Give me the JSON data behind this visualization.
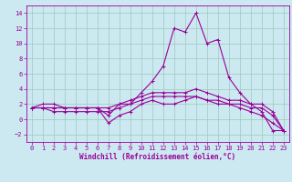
{
  "xlabel": "Windchill (Refroidissement éolien,°C)",
  "bg_color": "#cce8f0",
  "line_color": "#990099",
  "grid_color": "#99ccbb",
  "x": [
    0,
    1,
    2,
    3,
    4,
    5,
    6,
    7,
    8,
    9,
    10,
    11,
    12,
    13,
    14,
    15,
    16,
    17,
    18,
    19,
    20,
    21,
    22,
    23
  ],
  "series1": [
    1.5,
    2.0,
    2.0,
    1.5,
    1.5,
    1.5,
    1.5,
    0.5,
    2.0,
    2.0,
    3.5,
    5.0,
    7.0,
    12.0,
    11.5,
    14.0,
    10.0,
    10.5,
    5.5,
    3.5,
    2.0,
    1.0,
    -1.5,
    -1.5
  ],
  "series2": [
    1.5,
    1.5,
    1.5,
    1.5,
    1.5,
    1.5,
    1.5,
    -0.5,
    0.5,
    1.0,
    2.0,
    2.5,
    2.0,
    2.0,
    2.5,
    3.0,
    2.5,
    2.0,
    2.0,
    1.5,
    1.0,
    0.5,
    -0.5,
    -1.5
  ],
  "series3": [
    1.5,
    1.5,
    1.0,
    1.0,
    1.0,
    1.0,
    1.0,
    1.0,
    1.5,
    2.0,
    2.5,
    3.0,
    3.0,
    3.0,
    3.0,
    3.0,
    2.5,
    2.5,
    2.0,
    2.0,
    1.5,
    1.5,
    0.5,
    -1.5
  ],
  "series4": [
    1.5,
    1.5,
    1.5,
    1.5,
    1.5,
    1.5,
    1.5,
    1.5,
    2.0,
    2.5,
    3.0,
    3.5,
    3.5,
    3.5,
    3.5,
    4.0,
    3.5,
    3.0,
    2.5,
    2.5,
    2.0,
    2.0,
    1.0,
    -1.5
  ],
  "ylim": [
    -3.0,
    15.0
  ],
  "xlim": [
    -0.5,
    23.5
  ],
  "yticks": [
    -2,
    0,
    2,
    4,
    6,
    8,
    10,
    12,
    14
  ],
  "xticks": [
    0,
    1,
    2,
    3,
    4,
    5,
    6,
    7,
    8,
    9,
    10,
    11,
    12,
    13,
    14,
    15,
    16,
    17,
    18,
    19,
    20,
    21,
    22,
    23
  ],
  "tick_fontsize": 5.0,
  "xlabel_fontsize": 5.5
}
